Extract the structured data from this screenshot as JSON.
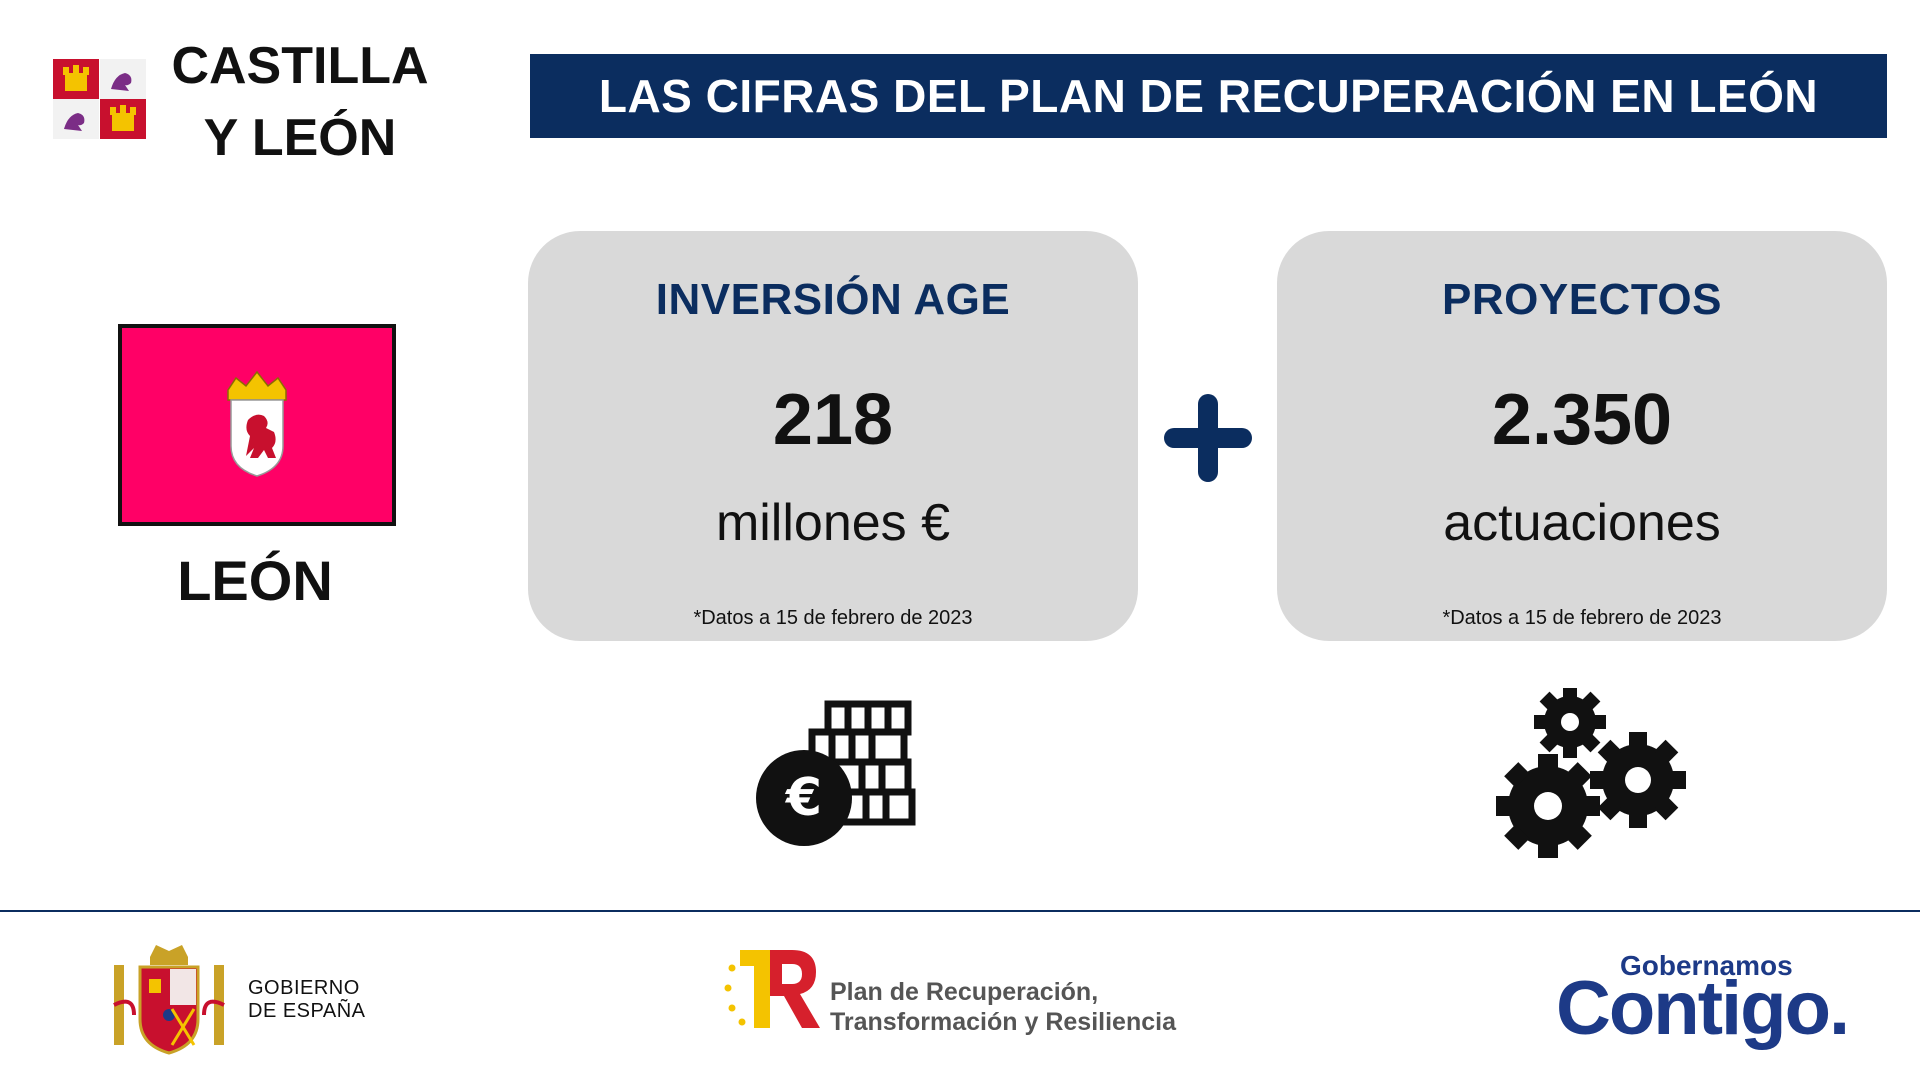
{
  "header": {
    "region_title_line1": "CASTILLA",
    "region_title_line2": "Y LEÓN",
    "banner_title": "LAS CIFRAS DEL PLAN DE RECUPERACIÓN EN LEÓN"
  },
  "province": {
    "name": "LEÓN",
    "flag_color": "#ff0066"
  },
  "cards": {
    "inversion": {
      "title": "INVERSIÓN AGE",
      "value": "218",
      "unit": "millones €",
      "note": "*Datos a 15 de febrero de 2023",
      "icon": "euro-coins-icon"
    },
    "proyectos": {
      "title": "PROYECTOS",
      "value": "2.350",
      "unit": "actuaciones",
      "note": "*Datos a 15 de febrero de 2023",
      "icon": "gears-icon"
    }
  },
  "footer": {
    "gobierno_line1": "GOBIERNO",
    "gobierno_line2": "DE ESPAÑA",
    "prtr_line1": "Plan de Recuperación,",
    "prtr_line2": "Transformación y Resiliencia",
    "contigo_small": "Gobernamos",
    "contigo_big": "Contigo."
  },
  "colors": {
    "navy": "#0b2d5f",
    "card_bg": "#d9d9d9",
    "contigo_blue": "#1d3a87",
    "prtr_red": "#d6202c",
    "prtr_yellow": "#f4c300"
  }
}
